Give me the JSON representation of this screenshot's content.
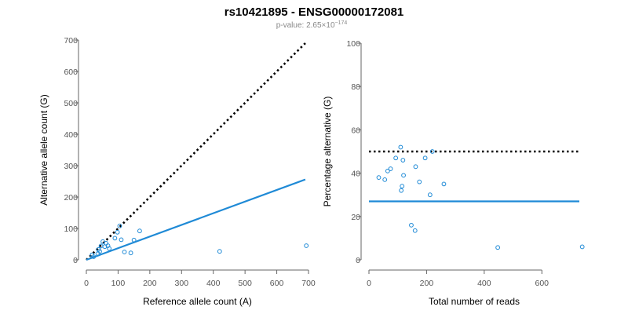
{
  "header": {
    "title": "rs10421895 - ENSG00000172081",
    "pvalue_prefix": "p-value: 2.65×10",
    "pvalue_exponent": "−174"
  },
  "colors": {
    "points": "#1f8ad6",
    "fit_line": "#1f8ad6",
    "reference_line": "#000000",
    "axis": "#666666"
  },
  "chart_data": [
    {
      "type": "scatter",
      "xlabel": "Reference allele count (A)",
      "ylabel": "Alternative allele count (G)",
      "xlim": [
        0,
        700
      ],
      "ylim": [
        0,
        700
      ],
      "xticks": [
        0,
        100,
        200,
        300,
        400,
        500,
        600,
        700
      ],
      "yticks": [
        0,
        100,
        200,
        300,
        400,
        500,
        600,
        700
      ],
      "grid": false,
      "points": [
        {
          "x": 18,
          "y": 16
        },
        {
          "x": 23,
          "y": 10
        },
        {
          "x": 36,
          "y": 20
        },
        {
          "x": 38,
          "y": 33
        },
        {
          "x": 42,
          "y": 27
        },
        {
          "x": 46,
          "y": 44
        },
        {
          "x": 52,
          "y": 58
        },
        {
          "x": 58,
          "y": 42
        },
        {
          "x": 62,
          "y": 53
        },
        {
          "x": 68,
          "y": 45
        },
        {
          "x": 72,
          "y": 36
        },
        {
          "x": 90,
          "y": 69
        },
        {
          "x": 98,
          "y": 88
        },
        {
          "x": 105,
          "y": 108
        },
        {
          "x": 110,
          "y": 64
        },
        {
          "x": 120,
          "y": 25
        },
        {
          "x": 140,
          "y": 22
        },
        {
          "x": 150,
          "y": 63
        },
        {
          "x": 168,
          "y": 92
        },
        {
          "x": 420,
          "y": 27
        },
        {
          "x": 693,
          "y": 45
        }
      ],
      "lines": [
        {
          "name": "",
          "style": "dotted",
          "x": [
            0,
            690
          ],
          "y": [
            0,
            690
          ]
        },
        {
          "name": "",
          "style": "solid",
          "x": [
            0,
            690
          ],
          "y": [
            0,
            256
          ]
        }
      ]
    },
    {
      "type": "scatter",
      "xlabel": "Total number of reads",
      "ylabel": "Percentage alternative (G)",
      "xlim": [
        0,
        730
      ],
      "ylim": [
        0,
        100
      ],
      "xticks": [
        0,
        200,
        400,
        600
      ],
      "yticks": [
        0,
        20,
        40,
        60,
        80,
        100
      ],
      "grid": false,
      "points": [
        {
          "x": 34,
          "y": 38
        },
        {
          "x": 55,
          "y": 37
        },
        {
          "x": 65,
          "y": 41
        },
        {
          "x": 75,
          "y": 42
        },
        {
          "x": 93,
          "y": 47
        },
        {
          "x": 110,
          "y": 52
        },
        {
          "x": 112,
          "y": 32
        },
        {
          "x": 115,
          "y": 34
        },
        {
          "x": 118,
          "y": 46
        },
        {
          "x": 120,
          "y": 39
        },
        {
          "x": 147,
          "y": 16
        },
        {
          "x": 160,
          "y": 13.5
        },
        {
          "x": 162,
          "y": 43
        },
        {
          "x": 175,
          "y": 36
        },
        {
          "x": 195,
          "y": 47
        },
        {
          "x": 212,
          "y": 30
        },
        {
          "x": 220,
          "y": 50
        },
        {
          "x": 260,
          "y": 35
        },
        {
          "x": 447,
          "y": 5.7
        },
        {
          "x": 740,
          "y": 6
        }
      ],
      "lines": [
        {
          "name": "",
          "style": "dotted",
          "x": [
            0,
            730
          ],
          "y": [
            50,
            50
          ]
        },
        {
          "name": "",
          "style": "solid",
          "x": [
            0,
            730
          ],
          "y": [
            27,
            27
          ]
        }
      ]
    }
  ]
}
